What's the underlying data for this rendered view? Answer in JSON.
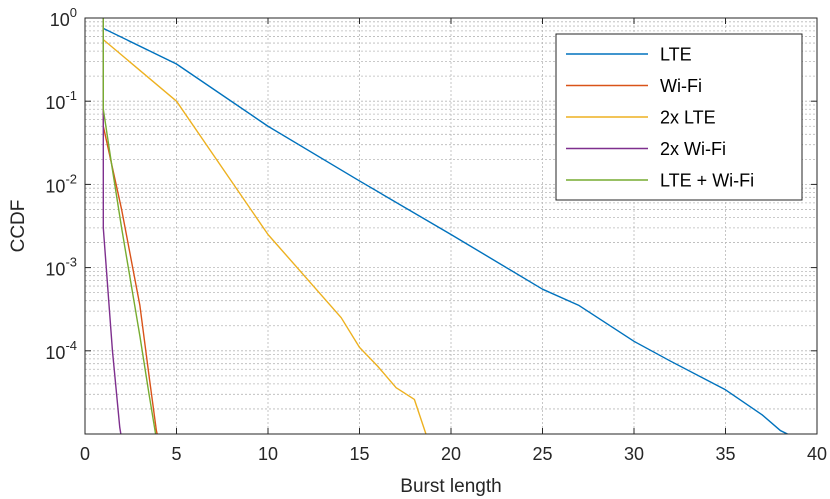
{
  "chart_data": {
    "type": "line",
    "title": "",
    "xlabel": "Burst length",
    "ylabel": "CCDF",
    "xlim": [
      0,
      40
    ],
    "ylim": [
      1e-05,
      1
    ],
    "yscale": "log",
    "grid": "on",
    "legend_position": "top-right",
    "x_ticks": [
      0,
      5,
      10,
      15,
      20,
      25,
      30,
      35,
      40
    ],
    "x_tick_labels": [
      "0",
      "5",
      "10",
      "15",
      "20",
      "25",
      "30",
      "35",
      "40"
    ],
    "y_ticks": [
      1,
      0.1,
      0.01,
      0.001,
      0.0001
    ],
    "y_tick_labels": [
      {
        "base": "10",
        "exp": "0"
      },
      {
        "base": "10",
        "exp": "-1"
      },
      {
        "base": "10",
        "exp": "-2"
      },
      {
        "base": "10",
        "exp": "-3"
      },
      {
        "base": "10",
        "exp": "-4"
      }
    ],
    "series": [
      {
        "name": "LTE",
        "color": "#0072BD",
        "points": [
          [
            1,
            0.75
          ],
          [
            5,
            0.28
          ],
          [
            10,
            0.05
          ],
          [
            15,
            0.011
          ],
          [
            20,
            0.0025
          ],
          [
            25,
            0.00055
          ],
          [
            27,
            0.00035
          ],
          [
            30,
            0.00013
          ],
          [
            32,
            7.5e-05
          ],
          [
            35,
            3.4e-05
          ],
          [
            37,
            1.7e-05
          ],
          [
            38,
            1.1e-05
          ],
          [
            38.9,
            8.8e-06
          ]
        ]
      },
      {
        "name": "Wi-Fi",
        "color": "#D95319",
        "points": [
          [
            1,
            1
          ],
          [
            1,
            0.05
          ],
          [
            2,
            0.005
          ],
          [
            3,
            0.00035
          ],
          [
            3.5,
            5e-05
          ],
          [
            3.9,
            1.1e-05
          ],
          [
            4,
            8.8e-06
          ]
        ]
      },
      {
        "name": "2x LTE",
        "color": "#EDB120",
        "points": [
          [
            1,
            1
          ],
          [
            1,
            0.55
          ],
          [
            5,
            0.1
          ],
          [
            10,
            0.0025
          ],
          [
            14,
            0.00025
          ],
          [
            15,
            0.00011
          ],
          [
            16,
            6.5e-05
          ],
          [
            17,
            3.6e-05
          ],
          [
            18,
            2.6e-05
          ],
          [
            18.7,
            9e-06
          ]
        ]
      },
      {
        "name": "2x Wi-Fi",
        "color": "#7E2F8E",
        "points": [
          [
            1,
            1
          ],
          [
            1,
            0.003
          ],
          [
            1.5,
            0.0001
          ],
          [
            1.9,
            1.2e-05
          ],
          [
            2,
            8.8e-06
          ]
        ]
      },
      {
        "name": "LTE + Wi-Fi",
        "color": "#77AC30",
        "points": [
          [
            1,
            1
          ],
          [
            1,
            0.08
          ],
          [
            1.5,
            0.015
          ],
          [
            2,
            0.003
          ],
          [
            3,
            0.00015
          ],
          [
            3.5,
            3e-05
          ],
          [
            3.9,
            8.8e-06
          ]
        ]
      }
    ]
  }
}
